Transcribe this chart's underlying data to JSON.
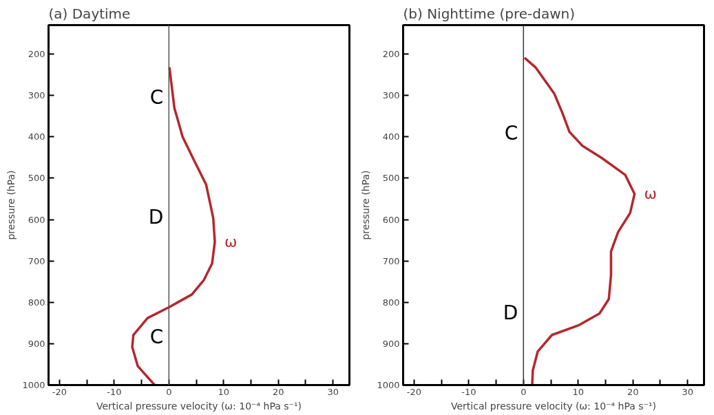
{
  "chart_data": [
    {
      "type": "line",
      "title": "(a) Daytime",
      "xlabel": "Vertical pressure velocity (ω: 10⁻⁴ hPa s⁻¹)",
      "ylabel": "pressure (hPa)",
      "xlim": [
        -22,
        33
      ],
      "ylim": [
        1000,
        130
      ],
      "xticks": [
        -20,
        {
          "value": -15,
          "label": null
        },
        -10,
        {
          "value": -5,
          "label": null
        },
        0,
        {
          "value": 5,
          "label": null
        },
        10,
        {
          "value": 15,
          "label": null
        },
        20,
        {
          "value": 25,
          "label": null
        },
        30
      ],
      "yticks": [
        200,
        300,
        400,
        500,
        600,
        700,
        800,
        900,
        1000
      ],
      "grid": false,
      "legend": false,
      "marker": "none",
      "line_style": "solid",
      "series": [
        {
          "name": "ω",
          "color": "#b5272d",
          "x": [
            0.1,
            1.0,
            2.5,
            4.6,
            6.8,
            8.1,
            8.4,
            7.9,
            6.4,
            4.2,
            0,
            -3.9,
            -6.5,
            -6.7,
            -5.7,
            -2.6
          ],
          "values": [
            232,
            330,
            400,
            457,
            515,
            596,
            654,
            706,
            746,
            781,
            812,
            838,
            879,
            908,
            954,
            1000
          ]
        }
      ],
      "ref_lines": [
        {
          "axis": "x",
          "value": 0,
          "color": "#555555",
          "line_style": "solid"
        }
      ],
      "annotations": [
        "C",
        "D",
        "C"
      ]
    },
    {
      "type": "line",
      "title": "(b) Nighttime  (pre-dawn)",
      "xlabel": "Vertical pressure velocity (ω: 10⁻⁴ hPa s⁻¹)",
      "ylabel": "pressure (hPa)",
      "xlim": [
        -22,
        33
      ],
      "ylim": [
        1000,
        130
      ],
      "xticks": [
        -20,
        {
          "value": -15,
          "label": null
        },
        -10,
        {
          "value": -5,
          "label": null
        },
        0,
        {
          "value": 5,
          "label": null
        },
        10,
        {
          "value": 15,
          "label": null
        },
        20,
        {
          "value": 25,
          "label": null
        },
        30
      ],
      "yticks": [
        200,
        300,
        400,
        500,
        600,
        700,
        800,
        900,
        1000
      ],
      "grid": false,
      "legend": false,
      "marker": "none",
      "line_style": "solid",
      "series": [
        {
          "name": "ω",
          "color": "#b5272d",
          "x": [
            0.2,
            2.2,
            5.6,
            7.1,
            8.4,
            10.8,
            14.3,
            18.6,
            20.3,
            19.5,
            17.3,
            16.0,
            16.0,
            15.6,
            13.9,
            10.0,
            5.2,
            2.6,
            1.7,
            1.6
          ],
          "values": [
            209,
            232,
            295,
            342,
            388,
            422,
            451,
            492,
            538,
            584,
            630,
            677,
            734,
            792,
            827,
            856,
            879,
            919,
            965,
            1000
          ]
        }
      ],
      "ref_lines": [
        {
          "axis": "x",
          "value": 0,
          "color": "#333333",
          "line_style": "solid"
        }
      ],
      "annotations": [
        "C",
        "D"
      ]
    }
  ]
}
